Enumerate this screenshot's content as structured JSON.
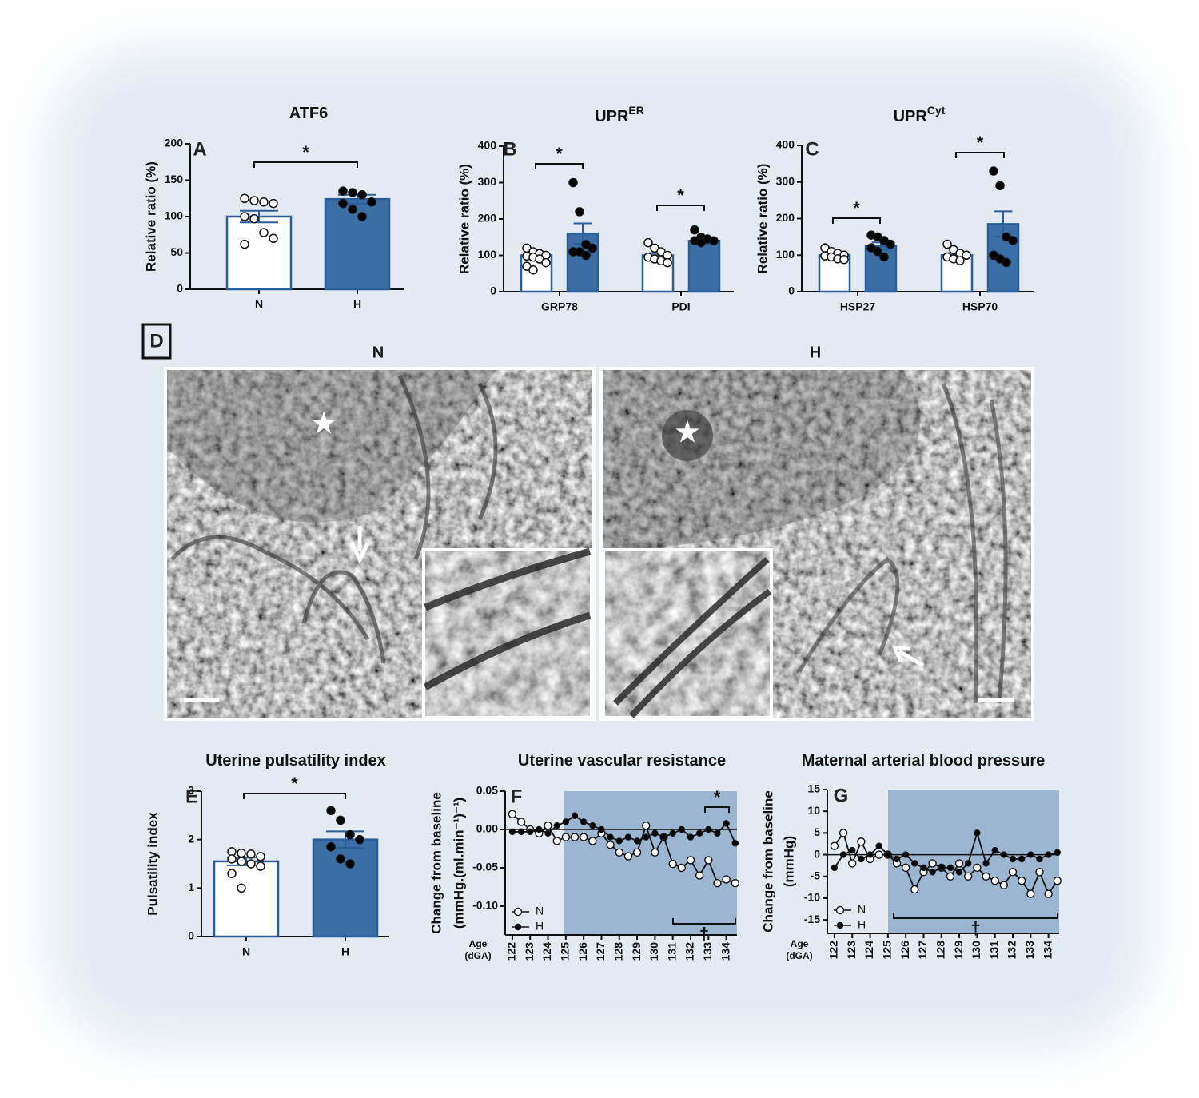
{
  "chart_data": [
    {
      "type": "bar",
      "panel": "A",
      "title": "ATF6",
      "ylabel": [
        "Relative ratio (%)"
      ],
      "categories": [
        "N",
        "H"
      ],
      "values": [
        100,
        124
      ],
      "errors": [
        8,
        6
      ],
      "points": [
        [
          125,
          122,
          120,
          118,
          100,
          97,
          78,
          70,
          62
        ],
        [
          135,
          133,
          130,
          120,
          118,
          110,
          100
        ]
      ],
      "colors": [
        "#ffffff",
        "#3b6ea5"
      ],
      "point_colors": [
        "#ffffff",
        "#000000"
      ],
      "edge_color": "#2b5d98",
      "ylim": [
        0,
        200
      ],
      "yticks": [
        0,
        50,
        100,
        150,
        200
      ],
      "annotations": [
        "*"
      ]
    },
    {
      "type": "bar",
      "panel": "B",
      "title": "UPR",
      "title_sup": "ER",
      "ylabel": [
        "Relative ratio (%)"
      ],
      "categories": [
        "GRP78",
        "PDI"
      ],
      "series": [
        {
          "color": "#ffffff",
          "point_color": "#ffffff",
          "values": [
            100,
            100
          ],
          "errors": [
            7,
            6
          ],
          "points": [
            [
              120,
              110,
              105,
              100,
              98,
              95,
              90,
              80,
              70,
              60
            ],
            [
              135,
              120,
              110,
              100,
              95,
              90,
              85,
              80
            ]
          ]
        },
        {
          "color": "#3b6ea5",
          "point_color": "#000000",
          "values": [
            160,
            140
          ],
          "errors": [
            28,
            8
          ],
          "points": [
            [
              300,
              220,
              130,
              120,
              110,
              110,
              100
            ],
            [
              170,
              150,
              145,
              140,
              140,
              135
            ]
          ]
        }
      ],
      "edge_color": "#2b5d98",
      "ylim": [
        0,
        400
      ],
      "yticks": [
        0,
        100,
        200,
        300,
        400
      ],
      "annotations": [
        "*",
        "*"
      ]
    },
    {
      "type": "bar",
      "panel": "C",
      "title": "UPR",
      "title_sup": "Cyt",
      "ylabel": [
        "Relative ratio (%)"
      ],
      "categories": [
        "HSP27",
        "HSP70"
      ],
      "series": [
        {
          "color": "#ffffff",
          "point_color": "#ffffff",
          "values": [
            100,
            100
          ],
          "errors": [
            5,
            6
          ],
          "points": [
            [
              120,
              110,
              105,
              100,
              98,
              95,
              90,
              88
            ],
            [
              130,
              115,
              105,
              100,
              95,
              90,
              85
            ]
          ]
        },
        {
          "color": "#3b6ea5",
          "point_color": "#000000",
          "values": [
            125,
            185
          ],
          "errors": [
            10,
            35
          ],
          "points": [
            [
              155,
              150,
              140,
              130,
              120,
              110,
              95
            ],
            [
              330,
              290,
              150,
              140,
              100,
              90,
              80
            ]
          ]
        }
      ],
      "edge_color": "#2b5d98",
      "ylim": [
        0,
        400
      ],
      "yticks": [
        0,
        100,
        200,
        300,
        400
      ],
      "annotations": [
        "*",
        "*"
      ]
    },
    {
      "type": "bar",
      "panel": "E",
      "title": "Uterine pulsatility index",
      "ylabel": [
        "Pulsatility index"
      ],
      "categories": [
        "N",
        "H"
      ],
      "values": [
        1.55,
        2.0
      ],
      "errors": [
        0.08,
        0.17
      ],
      "points": [
        [
          1.75,
          1.72,
          1.7,
          1.65,
          1.6,
          1.55,
          1.5,
          1.45,
          1.3,
          1.0
        ],
        [
          2.6,
          2.4,
          2.1,
          2.0,
          1.85,
          1.6,
          1.5
        ]
      ],
      "colors": [
        "#ffffff",
        "#3b6ea5"
      ],
      "point_colors": [
        "#ffffff",
        "#000000"
      ],
      "edge_color": "#2b5d98",
      "ylim": [
        0,
        3
      ],
      "yticks": [
        0,
        1,
        2,
        3
      ],
      "annotations": [
        "*"
      ]
    },
    {
      "type": "line",
      "panel": "F",
      "title": "Uterine vascular resistance",
      "ylabel": [
        "Change from baseline",
        "(mmHg.(ml.min⁻¹)⁻¹)"
      ],
      "xlabel": [
        "Age",
        "(dGA)"
      ],
      "x": [
        122,
        122.5,
        123,
        123.5,
        124,
        124.5,
        125,
        125.5,
        126,
        126.5,
        127,
        127.5,
        128,
        128.5,
        129,
        129.5,
        130,
        130.5,
        131,
        131.5,
        132,
        132.5,
        133,
        133.5,
        134,
        134.5
      ],
      "series": [
        {
          "name": "N",
          "color": "#ffffff",
          "values": [
            0.02,
            0.01,
            0.0,
            -0.005,
            0.005,
            -0.015,
            -0.01,
            -0.01,
            -0.01,
            -0.015,
            -0.005,
            -0.02,
            -0.03,
            -0.035,
            -0.03,
            0.005,
            -0.03,
            -0.01,
            -0.045,
            -0.05,
            -0.04,
            -0.06,
            -0.04,
            -0.07,
            -0.065,
            -0.07
          ]
        },
        {
          "name": "H",
          "color": "#000000",
          "values": [
            -0.003,
            -0.003,
            -0.003,
            0.0,
            -0.005,
            0.005,
            0.01,
            0.018,
            0.01,
            0.005,
            0.0,
            -0.01,
            -0.015,
            -0.01,
            -0.015,
            -0.01,
            -0.005,
            -0.01,
            -0.005,
            0.0,
            -0.01,
            -0.005,
            0.0,
            -0.005,
            0.008,
            -0.018
          ]
        }
      ],
      "xlim": [
        121.6,
        134.6
      ],
      "xticks": [
        122,
        123,
        124,
        125,
        126,
        127,
        128,
        129,
        130,
        131,
        132,
        133,
        134
      ],
      "ylim": [
        -0.1375,
        0.05
      ],
      "yticks": [
        0.05,
        {
          "value": 0,
          "label": "0.00"
        },
        -0.05,
        {
          "value": -0.1,
          "label": "-0.10"
        }
      ],
      "highlight_color": "#9cb6d2",
      "annotations": [
        "*",
        "†"
      ]
    },
    {
      "type": "line",
      "panel": "G",
      "title": "Maternal arterial blood pressure",
      "ylabel": [
        "Change from baseline",
        "(mmHg)"
      ],
      "xlabel": [
        "Age",
        "(dGA)"
      ],
      "x": [
        122,
        122.5,
        123,
        123.5,
        124,
        124.5,
        125,
        125.5,
        126,
        126.5,
        127,
        127.5,
        128,
        128.5,
        129,
        129.5,
        130,
        130.5,
        131,
        131.5,
        132,
        132.5,
        133,
        133.5,
        134,
        134.5
      ],
      "series": [
        {
          "name": "N",
          "color": "#ffffff",
          "values": [
            2,
            5,
            -2,
            3,
            -1,
            0,
            0,
            -2,
            -3,
            -8,
            -4,
            -2,
            -3,
            -5,
            -2,
            -5,
            -3,
            -5,
            -6,
            -7,
            -4,
            -6,
            -9,
            -4,
            -9,
            -6
          ]
        },
        {
          "name": "H",
          "color": "#000000",
          "values": [
            -3,
            0,
            1,
            -1,
            0,
            2,
            0,
            -1,
            0,
            -2,
            -3,
            -4,
            -3,
            -3,
            -4,
            -2,
            5,
            -2,
            1,
            0,
            -1,
            -1,
            0,
            -1,
            0,
            0.5
          ]
        }
      ],
      "xlim": [
        121.6,
        134.6
      ],
      "xticks": [
        122,
        123,
        124,
        125,
        126,
        127,
        128,
        129,
        130,
        131,
        132,
        133,
        134
      ],
      "ylim": [
        -18.1,
        15
      ],
      "yticks": [
        -15,
        -10,
        -5,
        0,
        5,
        10,
        15
      ],
      "highlight_color": "#9cb6d2",
      "annotations": [
        "†"
      ]
    }
  ],
  "micrograph": {
    "panel": "D",
    "labels": [
      "N",
      "H"
    ]
  }
}
